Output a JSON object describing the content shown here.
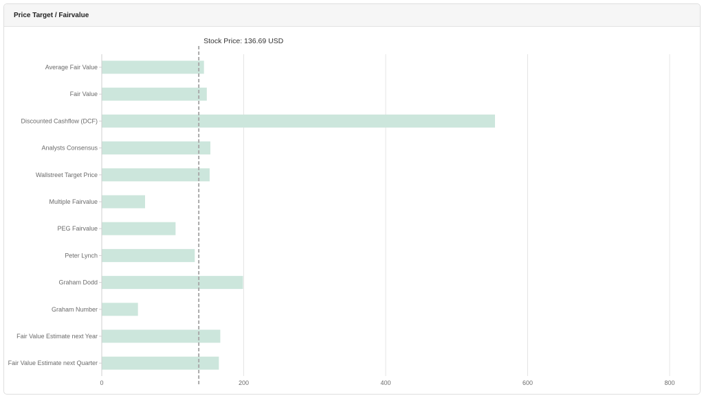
{
  "panel": {
    "title": "Price Target / Fairvalue"
  },
  "chart_data": {
    "type": "bar",
    "orientation": "horizontal",
    "title": "",
    "xlabel": "",
    "ylabel": "",
    "xlim": [
      0,
      800
    ],
    "xticks": [
      0,
      200,
      400,
      600,
      800
    ],
    "grid": true,
    "bar_color": "#cce6dc",
    "categories": [
      "Average Fair Value",
      "Fair Value",
      "Discounted Cashflow (DCF)",
      "Analysts Consensus",
      "Wallstreet Target Price",
      "Multiple Fairvalue",
      "PEG Fairvalue",
      "Peter Lynch",
      "Graham Dodd",
      "Graham Number",
      "Fair Value Estimate next Year",
      "Fair Value Estimate next Quarter"
    ],
    "values": [
      144,
      148,
      554,
      153,
      152,
      61,
      104,
      131,
      199,
      51,
      167,
      165
    ],
    "reference_line": {
      "value": 136.69,
      "label": "Stock Price: 136.69 USD",
      "color": "#a9a9a9"
    }
  }
}
